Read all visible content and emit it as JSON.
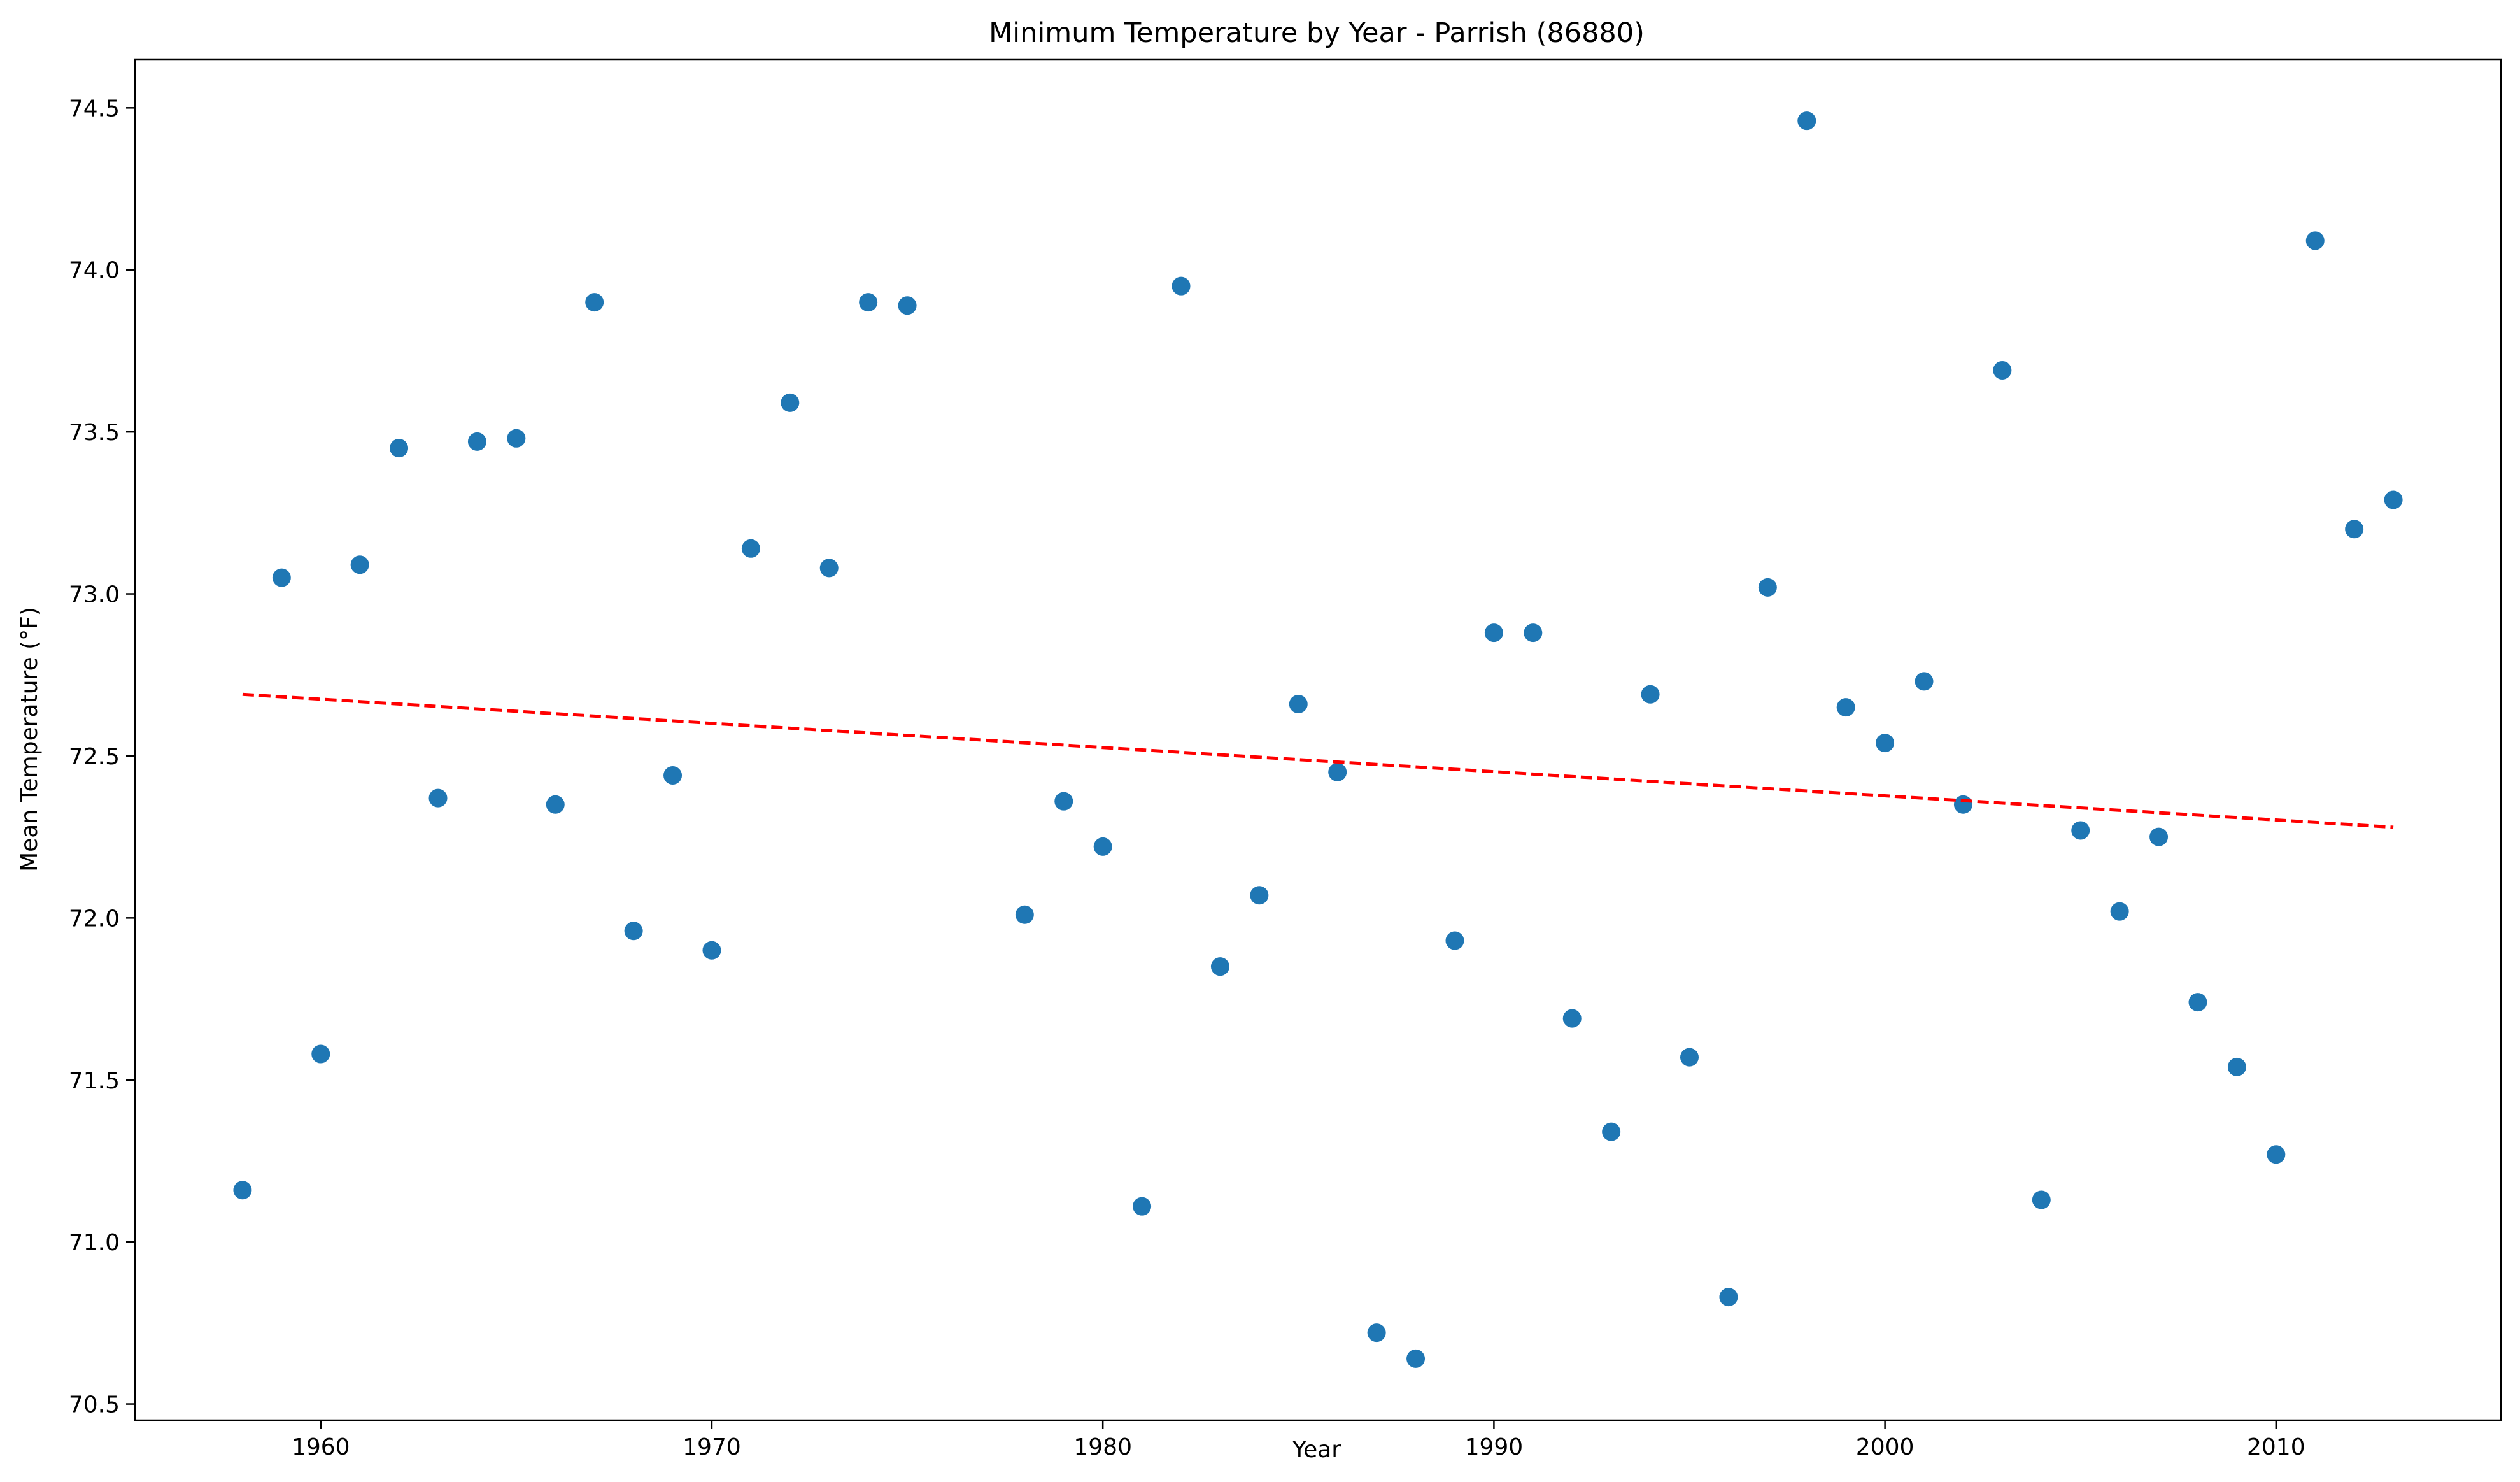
{
  "chart_data": {
    "type": "scatter",
    "title": "Minimum Temperature by Year - Parrish (86880)",
    "xlabel": "Year",
    "ylabel": "Mean Temperature (°F)",
    "xlim": [
      1955.25,
      2015.75
    ],
    "ylim": [
      70.45,
      74.65
    ],
    "xticks": [
      1960,
      1970,
      1980,
      1990,
      2000,
      2010
    ],
    "yticks": [
      70.5,
      71.0,
      71.5,
      72.0,
      72.5,
      73.0,
      73.5,
      74.0,
      74.5
    ],
    "ytick_labels": [
      "70.5",
      "71.0",
      "71.5",
      "72.0",
      "72.5",
      "73.0",
      "73.5",
      "74.0",
      "74.5"
    ],
    "grid": false,
    "legend": "none",
    "colors": {
      "points": "#1f77b4",
      "trend": "#ff0000"
    },
    "series": [
      {
        "points": [
          [
            1958,
            71.16
          ],
          [
            1959,
            73.05
          ],
          [
            1960,
            71.58
          ],
          [
            1961,
            73.09
          ],
          [
            1962,
            73.45
          ],
          [
            1963,
            72.37
          ],
          [
            1964,
            73.47
          ],
          [
            1965,
            73.48
          ],
          [
            1966,
            72.35
          ],
          [
            1967,
            73.9
          ],
          [
            1968,
            71.96
          ],
          [
            1969,
            72.44
          ],
          [
            1970,
            71.9
          ],
          [
            1971,
            73.14
          ],
          [
            1972,
            73.59
          ],
          [
            1973,
            73.08
          ],
          [
            1974,
            73.9
          ],
          [
            1975,
            73.89
          ],
          [
            1978,
            72.01
          ],
          [
            1979,
            72.36
          ],
          [
            1980,
            72.22
          ],
          [
            1981,
            71.11
          ],
          [
            1982,
            73.95
          ],
          [
            1983,
            71.85
          ],
          [
            1984,
            72.07
          ],
          [
            1985,
            72.66
          ],
          [
            1986,
            72.45
          ],
          [
            1987,
            70.72
          ],
          [
            1988,
            70.64
          ],
          [
            1989,
            71.93
          ],
          [
            1990,
            72.88
          ],
          [
            1991,
            72.88
          ],
          [
            1992,
            71.69
          ],
          [
            1993,
            71.34
          ],
          [
            1994,
            72.69
          ],
          [
            1995,
            71.57
          ],
          [
            1996,
            70.83
          ],
          [
            1997,
            73.02
          ],
          [
            1998,
            74.46
          ],
          [
            1999,
            72.65
          ],
          [
            2000,
            72.54
          ],
          [
            2001,
            72.73
          ],
          [
            2002,
            72.35
          ],
          [
            2003,
            73.69
          ],
          [
            2004,
            71.13
          ],
          [
            2005,
            72.27
          ],
          [
            2006,
            72.02
          ],
          [
            2007,
            72.25
          ],
          [
            2008,
            71.74
          ],
          [
            2009,
            71.54
          ],
          [
            2010,
            71.27
          ],
          [
            2011,
            74.09
          ],
          [
            2012,
            73.2
          ],
          [
            2013,
            73.29
          ]
        ]
      }
    ],
    "trendline": {
      "style": "dashed",
      "points": [
        [
          1958,
          72.69
        ],
        [
          2013,
          72.28
        ]
      ]
    }
  }
}
